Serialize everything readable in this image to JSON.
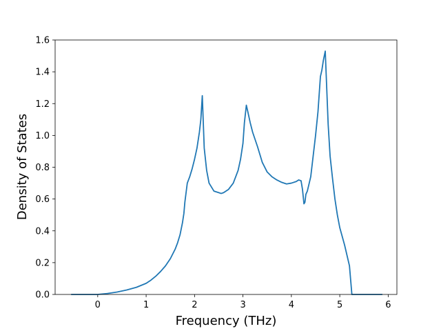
{
  "chart_data": {
    "type": "line",
    "title": "",
    "xlabel": "Frequency (THz)",
    "ylabel": "Density of States",
    "xlim": [
      -0.88,
      6.18
    ],
    "ylim": [
      0.0,
      1.6
    ],
    "xticks": [
      0,
      1,
      2,
      3,
      4,
      5,
      6
    ],
    "yticks": [
      0.0,
      0.2,
      0.4,
      0.6,
      0.8,
      1.0,
      1.2,
      1.4,
      1.6
    ],
    "grid": false,
    "legend": "none",
    "series": [
      {
        "color": "#1f77b4",
        "x": [
          -0.55,
          -0.3,
          0.0,
          0.2,
          0.4,
          0.6,
          0.8,
          1.0,
          1.1,
          1.2,
          1.3,
          1.4,
          1.5,
          1.6,
          1.65,
          1.7,
          1.75,
          1.78,
          1.8,
          1.85,
          1.9,
          1.95,
          2.0,
          2.05,
          2.1,
          2.13,
          2.16,
          2.2,
          2.25,
          2.3,
          2.4,
          2.5,
          2.55,
          2.6,
          2.7,
          2.8,
          2.9,
          2.95,
          3.0,
          3.03,
          3.07,
          3.1,
          3.15,
          3.2,
          3.3,
          3.4,
          3.5,
          3.6,
          3.7,
          3.8,
          3.9,
          4.0,
          4.1,
          4.15,
          4.2,
          4.23,
          4.26,
          4.28,
          4.3,
          4.33,
          4.4,
          4.45,
          4.5,
          4.55,
          4.6,
          4.63,
          4.66,
          4.7,
          4.73,
          4.76,
          4.8,
          4.85,
          4.9,
          4.95,
          5.0,
          5.1,
          5.2,
          5.25,
          5.3,
          5.33,
          5.4,
          5.6,
          5.88
        ],
        "y": [
          0.0,
          0.0,
          0.0,
          0.006,
          0.015,
          0.028,
          0.045,
          0.07,
          0.09,
          0.115,
          0.145,
          0.18,
          0.225,
          0.285,
          0.325,
          0.375,
          0.45,
          0.51,
          0.58,
          0.7,
          0.74,
          0.79,
          0.85,
          0.92,
          1.02,
          1.1,
          1.25,
          0.92,
          0.78,
          0.7,
          0.65,
          0.64,
          0.635,
          0.64,
          0.66,
          0.7,
          0.78,
          0.85,
          0.95,
          1.08,
          1.19,
          1.15,
          1.08,
          1.02,
          0.93,
          0.83,
          0.77,
          0.74,
          0.72,
          0.705,
          0.695,
          0.7,
          0.71,
          0.72,
          0.715,
          0.66,
          0.57,
          0.58,
          0.63,
          0.65,
          0.74,
          0.87,
          1.0,
          1.15,
          1.37,
          1.41,
          1.47,
          1.53,
          1.3,
          1.07,
          0.87,
          0.73,
          0.6,
          0.5,
          0.42,
          0.31,
          0.18,
          0.0,
          0.0,
          0.0,
          0.0,
          0.0,
          0.0
        ]
      }
    ]
  }
}
